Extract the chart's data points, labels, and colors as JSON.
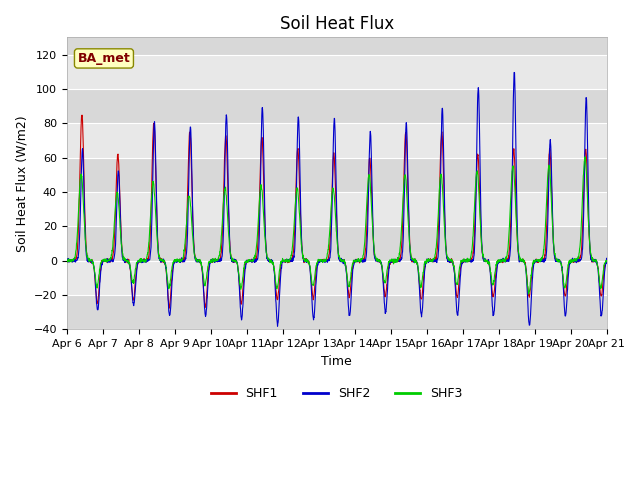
{
  "title": "Soil Heat Flux",
  "ylabel": "Soil Heat Flux (W/m2)",
  "xlabel": "Time",
  "ylim": [
    -40,
    130
  ],
  "yticks": [
    -40,
    -20,
    0,
    20,
    40,
    60,
    80,
    100,
    120
  ],
  "x_tick_labels": [
    "Apr 6",
    "Apr 7",
    "Apr 8",
    "Apr 9",
    "Apr 10",
    "Apr 11",
    "Apr 12",
    "Apr 13",
    "Apr 14",
    "Apr 15",
    "Apr 16",
    "Apr 17",
    "Apr 18",
    "Apr 19",
    "Apr 20",
    "Apr 21"
  ],
  "colors": {
    "SHF1": "#cc0000",
    "SHF2": "#0000cc",
    "SHF3": "#00cc00"
  },
  "annotation_text": "BA_met",
  "band_colors": [
    "#d8d8d8",
    "#e8e8e8"
  ],
  "grid_color": "#ffffff",
  "fig_bg": "#ffffff",
  "title_fontsize": 12,
  "label_fontsize": 9,
  "tick_fontsize": 8
}
